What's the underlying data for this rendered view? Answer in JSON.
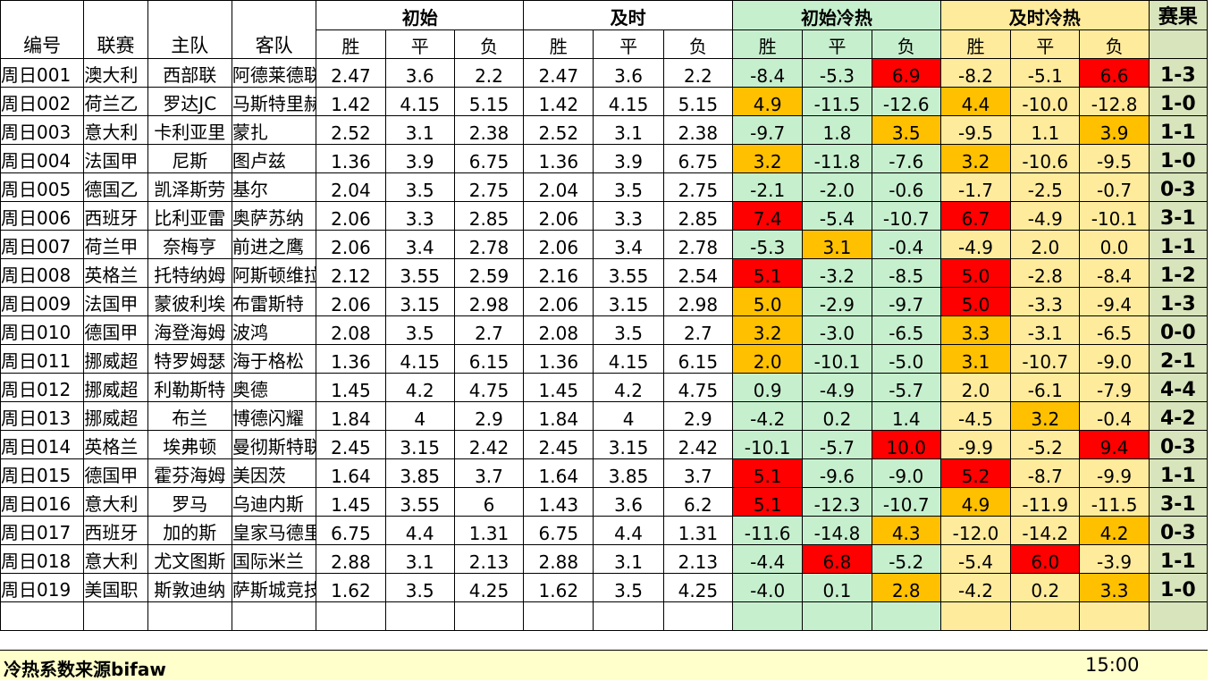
{
  "headers": {
    "id": "编号",
    "league": "联赛",
    "home": "主队",
    "away": "客队",
    "initial": "初始",
    "live": "及时",
    "initial_heat": "初始冷热",
    "live_heat": "及时冷热",
    "result": "赛果",
    "win": "胜",
    "draw": "平",
    "loss": "负"
  },
  "colors": {
    "initial_heat_bg": "#c6efce",
    "live_heat_bg": "#ffeb9c",
    "result_bg": "#d8e4bc",
    "hot_red": "#ff0000",
    "hot_orange": "#ffc000",
    "footer_bg": "#ffffcc"
  },
  "rows": [
    {
      "id": "周日001",
      "league": "澳大利",
      "home": "西部联",
      "away": "阿德莱德联",
      "init": [
        "2.47",
        "3.6",
        "2.2"
      ],
      "live": [
        "2.47",
        "3.6",
        "2.2"
      ],
      "iheat": [
        "-8.4",
        "-5.3",
        "6.9"
      ],
      "lheat": [
        "-8.2",
        "-5.1",
        "6.6"
      ],
      "result": "1-3"
    },
    {
      "id": "周日002",
      "league": "荷兰乙",
      "home": "罗达JC",
      "away": "马斯特里赫特",
      "init": [
        "1.42",
        "4.15",
        "5.15"
      ],
      "live": [
        "1.42",
        "4.15",
        "5.15"
      ],
      "iheat": [
        "4.9",
        "-11.5",
        "-12.6"
      ],
      "lheat": [
        "4.4",
        "-10.0",
        "-12.8"
      ],
      "result": "1-0"
    },
    {
      "id": "周日003",
      "league": "意大利",
      "home": "卡利亚里",
      "away": "蒙扎",
      "init": [
        "2.52",
        "3.1",
        "2.38"
      ],
      "live": [
        "2.52",
        "3.1",
        "2.38"
      ],
      "iheat": [
        "-9.7",
        "1.8",
        "3.5"
      ],
      "lheat": [
        "-9.5",
        "1.1",
        "3.9"
      ],
      "result": "1-1"
    },
    {
      "id": "周日004",
      "league": "法国甲",
      "home": "尼斯",
      "away": "图卢兹",
      "init": [
        "1.36",
        "3.9",
        "6.75"
      ],
      "live": [
        "1.36",
        "3.9",
        "6.75"
      ],
      "iheat": [
        "3.2",
        "-11.8",
        "-7.6"
      ],
      "lheat": [
        "3.2",
        "-10.6",
        "-9.5"
      ],
      "result": "1-0"
    },
    {
      "id": "周日005",
      "league": "德国乙",
      "home": "凯泽斯劳",
      "away": "基尔",
      "init": [
        "2.04",
        "3.5",
        "2.75"
      ],
      "live": [
        "2.04",
        "3.5",
        "2.75"
      ],
      "iheat": [
        "-2.1",
        "-2.0",
        "-0.6"
      ],
      "lheat": [
        "-1.7",
        "-2.5",
        "-0.7"
      ],
      "result": "0-3"
    },
    {
      "id": "周日006",
      "league": "西班牙",
      "home": "比利亚雷",
      "away": "奥萨苏纳",
      "init": [
        "2.06",
        "3.3",
        "2.85"
      ],
      "live": [
        "2.06",
        "3.3",
        "2.85"
      ],
      "iheat": [
        "7.4",
        "-5.4",
        "-10.7"
      ],
      "lheat": [
        "6.7",
        "-4.9",
        "-10.1"
      ],
      "result": "3-1"
    },
    {
      "id": "周日007",
      "league": "荷兰甲",
      "home": "奈梅亨",
      "away": "前进之鹰",
      "init": [
        "2.06",
        "3.4",
        "2.78"
      ],
      "live": [
        "2.06",
        "3.4",
        "2.78"
      ],
      "iheat": [
        "-5.3",
        "3.1",
        "-0.4"
      ],
      "lheat": [
        "-4.9",
        "2.0",
        "0.0"
      ],
      "result": "1-1"
    },
    {
      "id": "周日008",
      "league": "英格兰",
      "home": "托特纳姆",
      "away": "阿斯顿维拉",
      "init": [
        "2.12",
        "3.55",
        "2.59"
      ],
      "live": [
        "2.16",
        "3.55",
        "2.54"
      ],
      "iheat": [
        "5.1",
        "-3.2",
        "-8.5"
      ],
      "lheat": [
        "5.0",
        "-2.8",
        "-8.4"
      ],
      "result": "1-2"
    },
    {
      "id": "周日009",
      "league": "法国甲",
      "home": "蒙彼利埃",
      "away": "布雷斯特",
      "init": [
        "2.06",
        "3.15",
        "2.98"
      ],
      "live": [
        "2.06",
        "3.15",
        "2.98"
      ],
      "iheat": [
        "5.0",
        "-2.9",
        "-9.7"
      ],
      "lheat": [
        "5.0",
        "-3.3",
        "-9.4"
      ],
      "result": "1-3"
    },
    {
      "id": "周日010",
      "league": "德国甲",
      "home": "海登海姆",
      "away": "波鸿",
      "init": [
        "2.08",
        "3.5",
        "2.7"
      ],
      "live": [
        "2.08",
        "3.5",
        "2.7"
      ],
      "iheat": [
        "3.2",
        "-3.0",
        "-6.5"
      ],
      "lheat": [
        "3.3",
        "-3.1",
        "-6.5"
      ],
      "result": "0-0"
    },
    {
      "id": "周日011",
      "league": "挪威超",
      "home": "特罗姆瑟",
      "away": "海于格松",
      "init": [
        "1.36",
        "4.15",
        "6.15"
      ],
      "live": [
        "1.36",
        "4.15",
        "6.15"
      ],
      "iheat": [
        "2.0",
        "-10.1",
        "-5.0"
      ],
      "lheat": [
        "3.1",
        "-10.7",
        "-9.0"
      ],
      "result": "2-1"
    },
    {
      "id": "周日012",
      "league": "挪威超",
      "home": "利勒斯特",
      "away": "奥德",
      "init": [
        "1.45",
        "4.2",
        "4.75"
      ],
      "live": [
        "1.45",
        "4.2",
        "4.75"
      ],
      "iheat": [
        "0.9",
        "-4.9",
        "-5.7"
      ],
      "lheat": [
        "2.0",
        "-6.1",
        "-7.9"
      ],
      "result": "4-4"
    },
    {
      "id": "周日013",
      "league": "挪威超",
      "home": "布兰",
      "away": "博德闪耀",
      "init": [
        "1.84",
        "4",
        "2.9"
      ],
      "live": [
        "1.84",
        "4",
        "2.9"
      ],
      "iheat": [
        "-4.2",
        "0.2",
        "1.4"
      ],
      "lheat": [
        "-4.5",
        "3.2",
        "-0.4"
      ],
      "result": "4-2"
    },
    {
      "id": "周日014",
      "league": "英格兰",
      "home": "埃弗顿",
      "away": "曼彻斯特联",
      "init": [
        "2.45",
        "3.15",
        "2.42"
      ],
      "live": [
        "2.45",
        "3.15",
        "2.42"
      ],
      "iheat": [
        "-10.1",
        "-5.7",
        "10.0"
      ],
      "lheat": [
        "-9.9",
        "-5.2",
        "9.4"
      ],
      "result": "0-3"
    },
    {
      "id": "周日015",
      "league": "德国甲",
      "home": "霍芬海姆",
      "away": "美因茨",
      "init": [
        "1.64",
        "3.85",
        "3.7"
      ],
      "live": [
        "1.64",
        "3.85",
        "3.7"
      ],
      "iheat": [
        "5.1",
        "-9.6",
        "-9.0"
      ],
      "lheat": [
        "5.2",
        "-8.7",
        "-9.9"
      ],
      "result": "1-1"
    },
    {
      "id": "周日016",
      "league": "意大利",
      "home": "罗马",
      "away": "乌迪内斯",
      "init": [
        "1.45",
        "3.55",
        "6"
      ],
      "live": [
        "1.43",
        "3.6",
        "6.2"
      ],
      "iheat": [
        "5.1",
        "-12.3",
        "-10.7"
      ],
      "lheat": [
        "4.9",
        "-11.9",
        "-11.5"
      ],
      "result": "3-1"
    },
    {
      "id": "周日017",
      "league": "西班牙",
      "home": "加的斯",
      "away": "皇家马德里",
      "init": [
        "6.75",
        "4.4",
        "1.31"
      ],
      "live": [
        "6.75",
        "4.4",
        "1.31"
      ],
      "iheat": [
        "-11.6",
        "-14.8",
        "4.3"
      ],
      "lheat": [
        "-12.0",
        "-14.2",
        "4.2"
      ],
      "result": "0-3"
    },
    {
      "id": "周日018",
      "league": "意大利",
      "home": "尤文图斯",
      "away": "国际米兰",
      "init": [
        "2.88",
        "3.1",
        "2.13"
      ],
      "live": [
        "2.88",
        "3.1",
        "2.13"
      ],
      "iheat": [
        "-4.4",
        "6.8",
        "-5.2"
      ],
      "lheat": [
        "-5.4",
        "6.0",
        "-3.9"
      ],
      "result": "1-1"
    },
    {
      "id": "周日019",
      "league": "美国职",
      "home": "斯敦迪纳",
      "away": "萨斯城竞技",
      "init": [
        "1.62",
        "3.5",
        "4.25"
      ],
      "live": [
        "1.62",
        "3.5",
        "4.25"
      ],
      "iheat": [
        "-4.0",
        "0.1",
        "2.8"
      ],
      "lheat": [
        "-4.2",
        "0.2",
        "3.3"
      ],
      "result": "1-0"
    }
  ],
  "highlights": {
    "0": {
      "iheat": [
        null,
        null,
        "red"
      ],
      "lheat": [
        null,
        null,
        "red"
      ]
    },
    "1": {
      "iheat": [
        "org",
        null,
        null
      ],
      "lheat": [
        "org",
        null,
        null
      ]
    },
    "2": {
      "iheat": [
        null,
        null,
        "org"
      ],
      "lheat": [
        null,
        null,
        "org"
      ]
    },
    "3": {
      "iheat": [
        "org",
        null,
        null
      ],
      "lheat": [
        "org",
        null,
        null
      ]
    },
    "5": {
      "iheat": [
        "red",
        null,
        null
      ],
      "lheat": [
        "red",
        null,
        null
      ]
    },
    "6": {
      "iheat": [
        null,
        "org",
        null
      ],
      "lheat": [
        null,
        null,
        null
      ]
    },
    "7": {
      "iheat": [
        "red",
        null,
        null
      ],
      "lheat": [
        "red",
        null,
        null
      ]
    },
    "8": {
      "iheat": [
        "org",
        null,
        null
      ],
      "lheat": [
        "red",
        null,
        null
      ]
    },
    "9": {
      "iheat": [
        "org",
        null,
        null
      ],
      "lheat": [
        "org",
        null,
        null
      ]
    },
    "10": {
      "iheat": [
        "org",
        null,
        null
      ],
      "lheat": [
        "org",
        null,
        null
      ]
    },
    "12": {
      "iheat": [
        null,
        null,
        null
      ],
      "lheat": [
        null,
        "org",
        null
      ]
    },
    "13": {
      "iheat": [
        null,
        null,
        "red"
      ],
      "lheat": [
        null,
        null,
        "red"
      ]
    },
    "14": {
      "iheat": [
        "red",
        null,
        null
      ],
      "lheat": [
        "red",
        null,
        null
      ]
    },
    "15": {
      "iheat": [
        "red",
        null,
        null
      ],
      "lheat": [
        "org",
        null,
        null
      ]
    },
    "16": {
      "iheat": [
        null,
        null,
        "org"
      ],
      "lheat": [
        null,
        null,
        "org"
      ]
    },
    "17": {
      "iheat": [
        null,
        "red",
        null
      ],
      "lheat": [
        null,
        "red",
        null
      ]
    },
    "18": {
      "iheat": [
        null,
        null,
        "org"
      ],
      "lheat": [
        null,
        null,
        "org"
      ]
    }
  },
  "footer": {
    "source": "冷热系数来源bifaw",
    "time": "15:00"
  }
}
